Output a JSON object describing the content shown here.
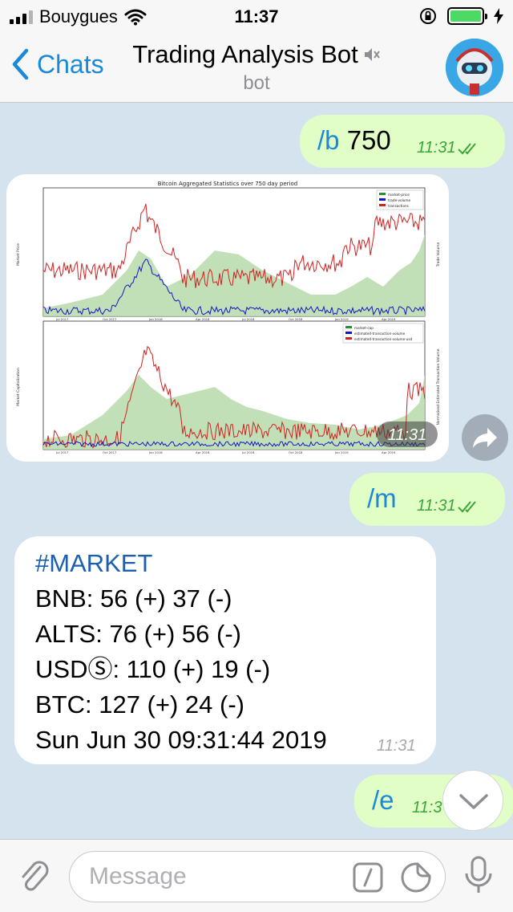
{
  "status_bar": {
    "carrier": "Bouygues",
    "time": "11:37",
    "battery_color": "#4cd964"
  },
  "header": {
    "back_label": "Chats",
    "title": "Trading Analysis Bot",
    "subtitle": "bot",
    "icons": {
      "back": "chevron-left-icon",
      "mute": "muted-speaker-icon"
    }
  },
  "messages": [
    {
      "id": "msg-b",
      "direction": "out",
      "command": "/b",
      "arg": "750",
      "time": "11:31",
      "read": true
    },
    {
      "id": "msg-chart",
      "direction": "in",
      "type": "image",
      "time": "11:31",
      "chart": {
        "title": "Bitcoin Aggregated Statistics over 750 day period",
        "top_legend": [
          "market-price",
          "trade-volume",
          "transactions"
        ],
        "bottom_legend": [
          "market-cap",
          "estimated-transaction-volume",
          "estimated-transaction-volume-usd"
        ],
        "top_ylabel_left": "Market Price",
        "top_ylabel_right": "Trade Volume",
        "bottom_ylabel_left": "Market Capitalization",
        "bottom_ylabel_right": "Normalised Estimated Transaction Volume",
        "x_ticks": [
          "Jul 2017",
          "Oct 2017",
          "Jan 2018",
          "Apr 2018",
          "Jul 2018",
          "Oct 2018",
          "Jan 2019",
          "Apr 2019"
        ],
        "colors": {
          "green": "#2e8b2e",
          "blue": "#1515c8",
          "red": "#d42020",
          "area": "#b7dbaa"
        }
      }
    },
    {
      "id": "msg-m",
      "direction": "out",
      "command": "/m",
      "time": "11:31",
      "read": true
    },
    {
      "id": "msg-market",
      "direction": "in",
      "time": "11:31",
      "tag": "#MARKET",
      "lines": [
        "BNB: 56 (+) 37 (-)",
        "ALTS: 76 (+) 56 (-)",
        "USDⓈ: 110 (+) 19 (-)",
        "BTC: 127 (+) 24 (-)",
        "Sun Jun 30 09:31:44 2019"
      ]
    },
    {
      "id": "msg-e",
      "direction": "out",
      "command": "/e",
      "time": "11:3",
      "read": false
    }
  ],
  "input": {
    "placeholder": "Message"
  },
  "accent_color": "#1a8ad8"
}
